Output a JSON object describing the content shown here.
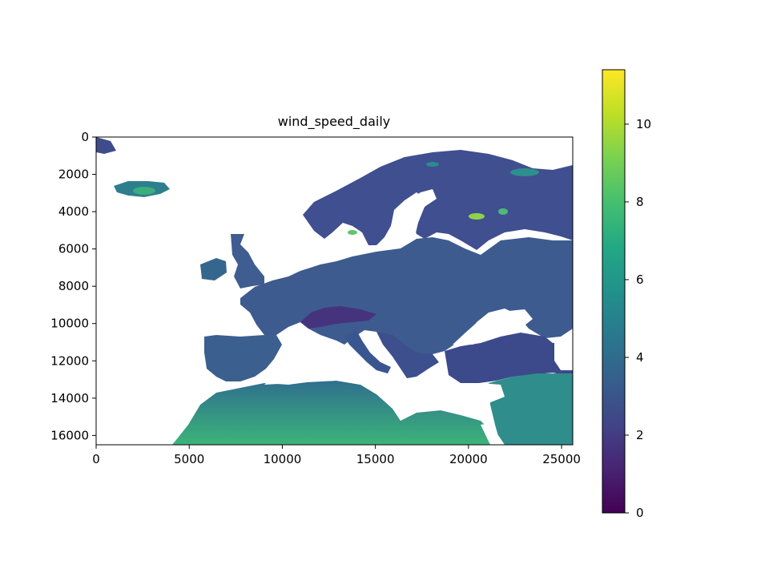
{
  "chart_data": {
    "type": "heatmap",
    "title": "wind_speed_daily",
    "xlabel": "",
    "ylabel": "",
    "xlim": [
      0,
      25600
    ],
    "ylim": [
      16500,
      0
    ],
    "x_ticks": [
      "0",
      "5000",
      "10000",
      "15000",
      "20000",
      "25000"
    ],
    "y_ticks": [
      "0",
      "2000",
      "4000",
      "6000",
      "8000",
      "10000",
      "12000",
      "14000",
      "16000"
    ],
    "colorbar": {
      "colormap": "viridis",
      "range": [
        0,
        11.4
      ],
      "ticks": [
        "0",
        "2",
        "4",
        "6",
        "8",
        "10"
      ]
    },
    "nodata_color": "#ffffff",
    "colors": {
      "land_low": "#46337e",
      "land_mid": "#365c8d",
      "land_high": "#2a9a8a",
      "accent_high": "#a5db36"
    }
  }
}
